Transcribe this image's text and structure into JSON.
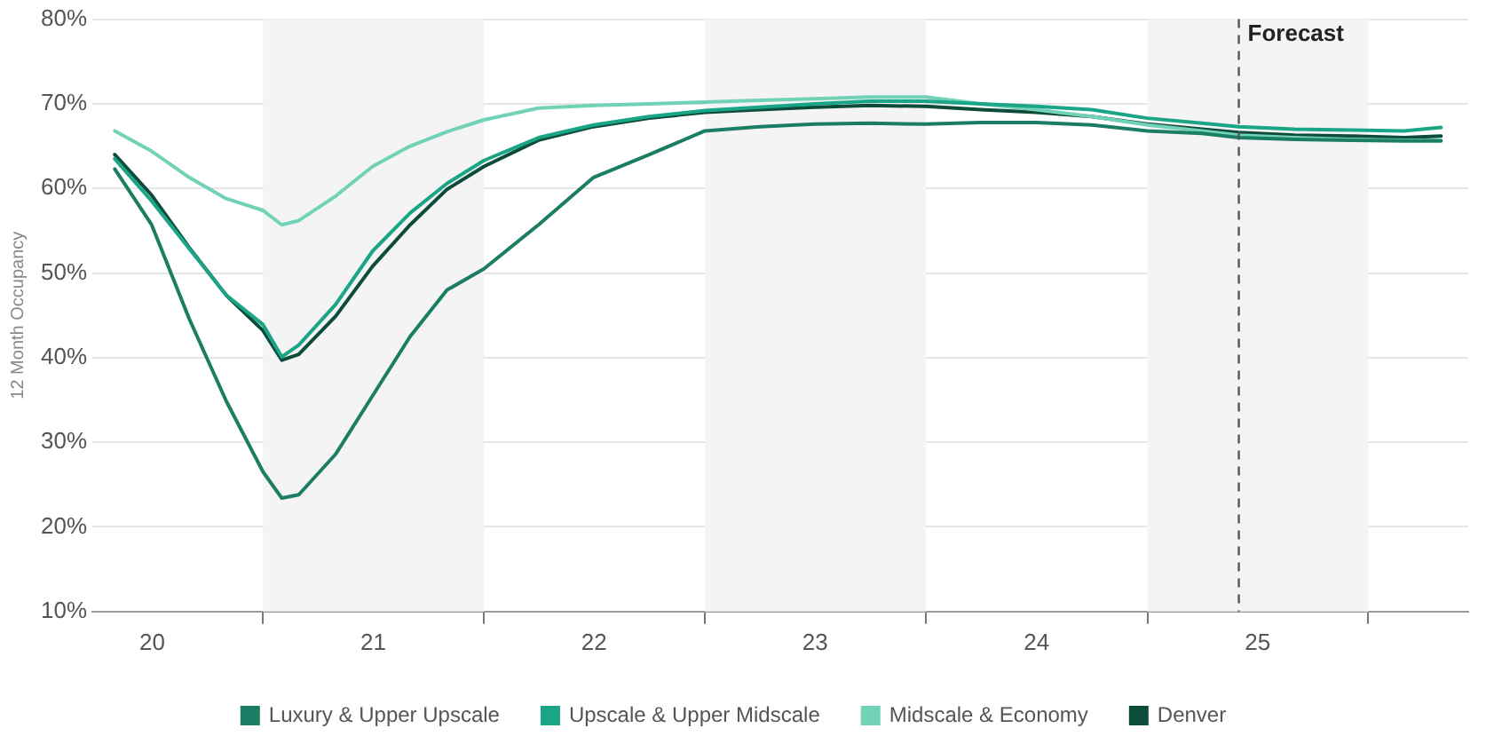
{
  "chart_data": {
    "type": "line",
    "ylabel": "12 Month Occupancy",
    "x": [
      "2020-05",
      "2020-07",
      "2020-09",
      "2020-11",
      "2021-01",
      "2021-02",
      "2021-03",
      "2021-05",
      "2021-07",
      "2021-09",
      "2021-11",
      "2022-01",
      "2022-04",
      "2022-07",
      "2022-10",
      "2023-01",
      "2023-04",
      "2023-07",
      "2023-10",
      "2024-01",
      "2024-04",
      "2024-07",
      "2024-10",
      "2025-01",
      "2025-04",
      "2025-06",
      "2025-09",
      "2025-12",
      "2026-03",
      "2026-05"
    ],
    "series": [
      {
        "name": "Luxury & Upper Upscale",
        "color": "#1b7d64",
        "values": [
          62.3,
          55.7,
          44.6,
          34.9,
          26.5,
          23.4,
          23.8,
          28.6,
          35.5,
          42.5,
          48,
          50.5,
          55.7,
          61.3,
          64,
          66.8,
          67.3,
          67.6,
          67.7,
          67.6,
          67.8,
          67.8,
          67.5,
          66.8,
          66.5,
          66,
          65.8,
          65.7,
          65.6,
          65.6
        ]
      },
      {
        "name": "Upscale & Upper Midscale",
        "color": "#1aa587",
        "values": [
          63.5,
          58.5,
          52.9,
          47.4,
          43.9,
          40.1,
          41.5,
          46.3,
          52.6,
          57.1,
          60.6,
          63.3,
          66,
          67.5,
          68.5,
          69.2,
          69.6,
          70,
          70.3,
          70.3,
          70,
          69.7,
          69.3,
          68.3,
          67.7,
          67.3,
          67,
          66.9,
          66.8,
          67.2
        ]
      },
      {
        "name": "Midscale & Economy",
        "color": "#72d2b8",
        "values": [
          66.8,
          64.4,
          61.3,
          58.8,
          57.4,
          55.7,
          56.2,
          59.1,
          62.6,
          65,
          66.7,
          68.1,
          69.5,
          69.8,
          70,
          70.2,
          70.4,
          70.6,
          70.8,
          70.8,
          70,
          69.3,
          68.5,
          67.5,
          66.8,
          66.3,
          66,
          65.8,
          65.7,
          65.7
        ]
      },
      {
        "name": "Denver",
        "color": "#0d4b3b",
        "values": [
          64,
          59.2,
          53,
          47.4,
          43.2,
          39.7,
          40.4,
          44.9,
          50.8,
          55.7,
          59.9,
          62.6,
          65.7,
          67.3,
          68.3,
          69,
          69.3,
          69.6,
          69.8,
          69.7,
          69.3,
          69,
          68.5,
          67.6,
          67,
          66.6,
          66.3,
          66.2,
          66,
          66.2
        ]
      }
    ],
    "xlim": [
      "2020-03-25",
      "2026-06-15"
    ],
    "xticks": [
      {
        "value": "2020-07-02",
        "label": "20"
      },
      {
        "value": "2021-01-01",
        "label": null
      },
      {
        "value": "2021-07-02",
        "label": "21"
      },
      {
        "value": "2022-01-01",
        "label": null
      },
      {
        "value": "2022-07-02",
        "label": "22"
      },
      {
        "value": "2023-01-01",
        "label": null
      },
      {
        "value": "2023-07-02",
        "label": "23"
      },
      {
        "value": "2024-01-01",
        "label": null
      },
      {
        "value": "2024-07-02",
        "label": "24"
      },
      {
        "value": "2025-01-01",
        "label": null
      },
      {
        "value": "2025-07-02",
        "label": "25"
      },
      {
        "value": "2026-01-01",
        "label": null
      }
    ],
    "ylim": [
      10,
      80
    ],
    "yticks": [
      {
        "value": 10,
        "label": "10%"
      },
      {
        "value": 20,
        "label": "20%"
      },
      {
        "value": 30,
        "label": "30%"
      },
      {
        "value": 40,
        "label": "40%"
      },
      {
        "value": 50,
        "label": "50%"
      },
      {
        "value": 60,
        "label": "60%"
      },
      {
        "value": 70,
        "label": "70%"
      },
      {
        "value": 80,
        "label": "80%"
      }
    ],
    "bands": [
      {
        "axis": "x",
        "from": "2021-01-01",
        "to": "2022-01-01",
        "color": "#f4f4f4"
      },
      {
        "axis": "x",
        "from": "2023-01-01",
        "to": "2024-01-01",
        "color": "#f4f4f4"
      },
      {
        "axis": "x",
        "from": "2025-01-01",
        "to": "2026-01-01",
        "color": "#f4f4f4"
      }
    ],
    "ref_lines": [
      {
        "axis": "x",
        "value": "2025-06-01",
        "label": "Forecast",
        "color": "#555555",
        "line_style": "dashed"
      }
    ],
    "grid": "y",
    "legend": "bottom",
    "marker": "none",
    "line_style": "solid"
  }
}
